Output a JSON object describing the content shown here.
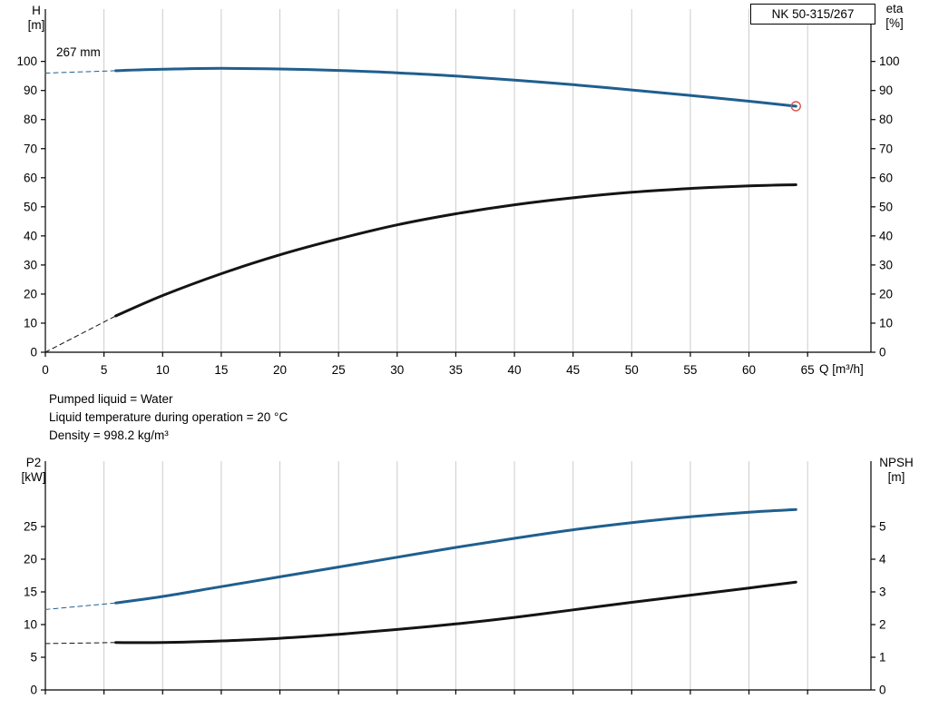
{
  "colors": {
    "blue": "#1f5f8e",
    "black": "#141414",
    "red": "#d9534f",
    "grid": "#cccccc",
    "axis": "#000000"
  },
  "info": {
    "lines": [
      "Pumped liquid = Water",
      "Liquid temperature during operation = 20 °C",
      "Density = 998.2 kg/m³"
    ]
  },
  "chart_data": [
    {
      "type": "line",
      "name": "head-efficiency-chart",
      "xlabel": "Q [m³/h]",
      "ylabel_left": "H [m]",
      "ylabel_right": "eta [%]",
      "ylabel_left_lines": [
        "H",
        "[m]"
      ],
      "ylabel_right_lines": [
        "eta",
        "[%]"
      ],
      "xlim": [
        0,
        70.4
      ],
      "ylim_left": [
        0,
        118
      ],
      "ylim_right": [
        0,
        118
      ],
      "xticks": [
        0,
        5,
        10,
        15,
        20,
        25,
        30,
        35,
        40,
        45,
        50,
        55,
        60,
        65
      ],
      "yticks_left": [
        0,
        10,
        20,
        30,
        40,
        50,
        60,
        70,
        80,
        90,
        100
      ],
      "yticks_right": [
        0,
        10,
        20,
        30,
        40,
        50,
        60,
        70,
        80,
        90,
        100
      ],
      "grid": "vertical",
      "legend": "none",
      "annotations": {
        "pump_model": "NK 50-315/267",
        "impeller_diameter": "267 mm"
      },
      "series": [
        {
          "name": "head-curve",
          "axis": "left",
          "style": "solid",
          "color_key": "blue",
          "width": 3,
          "x": [
            6,
            10,
            15,
            20,
            25,
            30,
            35,
            40,
            45,
            50,
            55,
            60,
            64
          ],
          "y": [
            96.8,
            97.3,
            97.6,
            97.4,
            96.9,
            96.1,
            95.0,
            93.6,
            92.0,
            90.2,
            88.3,
            86.3,
            84.6
          ]
        },
        {
          "name": "head-extrapolation",
          "axis": "left",
          "style": "dashed",
          "color_key": "blue",
          "width": 1,
          "x": [
            0,
            6
          ],
          "y": [
            96.0,
            96.8
          ]
        },
        {
          "name": "efficiency-curve",
          "axis": "right",
          "style": "solid",
          "color_key": "black",
          "width": 3,
          "x": [
            6,
            10,
            15,
            20,
            25,
            30,
            35,
            40,
            45,
            50,
            55,
            60,
            64
          ],
          "y": [
            12.5,
            19.5,
            27.0,
            33.5,
            39.0,
            43.8,
            47.6,
            50.7,
            53.1,
            55.0,
            56.3,
            57.2,
            57.6
          ]
        },
        {
          "name": "efficiency-extrapolation",
          "axis": "right",
          "style": "dashed",
          "color_key": "black",
          "width": 1,
          "x": [
            0,
            6
          ],
          "y": [
            0,
            12.5
          ]
        }
      ],
      "marker": {
        "name": "duty-point-marker",
        "axis": "left",
        "x": 64,
        "y": 84.6,
        "radius": 5,
        "color_key": "red"
      }
    },
    {
      "type": "line",
      "name": "power-npsh-chart",
      "xlabel": "",
      "ylabel_left": "P2 [kW]",
      "ylabel_right": "NPSH [m]",
      "ylabel_left_lines": [
        "P2",
        "[kW]"
      ],
      "ylabel_right_lines": [
        "NPSH",
        "[m]"
      ],
      "xlim": [
        0,
        70.4
      ],
      "ylim_left": [
        0,
        35
      ],
      "ylim_right": [
        0,
        7
      ],
      "xticks": [
        0,
        5,
        10,
        15,
        20,
        25,
        30,
        35,
        40,
        45,
        50,
        55,
        60,
        65
      ],
      "yticks_left": [
        0,
        5,
        10,
        15,
        20,
        25
      ],
      "yticks_right": [
        0,
        1,
        2,
        3,
        4,
        5
      ],
      "grid": "vertical",
      "legend": "none",
      "series": [
        {
          "name": "p2-curve",
          "axis": "left",
          "style": "solid",
          "color_key": "blue",
          "width": 3,
          "x": [
            6,
            10,
            15,
            20,
            25,
            30,
            35,
            40,
            45,
            50,
            55,
            60,
            64
          ],
          "y": [
            13.3,
            14.3,
            15.8,
            17.3,
            18.8,
            20.3,
            21.8,
            23.2,
            24.5,
            25.6,
            26.5,
            27.2,
            27.6
          ]
        },
        {
          "name": "p2-extrapolation",
          "axis": "left",
          "style": "dashed",
          "color_key": "blue",
          "width": 1,
          "x": [
            0,
            6
          ],
          "y": [
            12.3,
            13.3
          ]
        },
        {
          "name": "npsh-curve",
          "axis": "right",
          "style": "solid",
          "color_key": "black",
          "width": 3,
          "x": [
            6,
            10,
            15,
            20,
            25,
            30,
            35,
            40,
            45,
            50,
            55,
            60,
            64
          ],
          "y": [
            1.45,
            1.45,
            1.5,
            1.58,
            1.7,
            1.85,
            2.02,
            2.22,
            2.45,
            2.68,
            2.9,
            3.12,
            3.3
          ]
        },
        {
          "name": "npsh-extrapolation",
          "axis": "right",
          "style": "dashed",
          "color_key": "black",
          "width": 1,
          "x": [
            0,
            6
          ],
          "y": [
            1.42,
            1.45
          ]
        }
      ]
    }
  ]
}
